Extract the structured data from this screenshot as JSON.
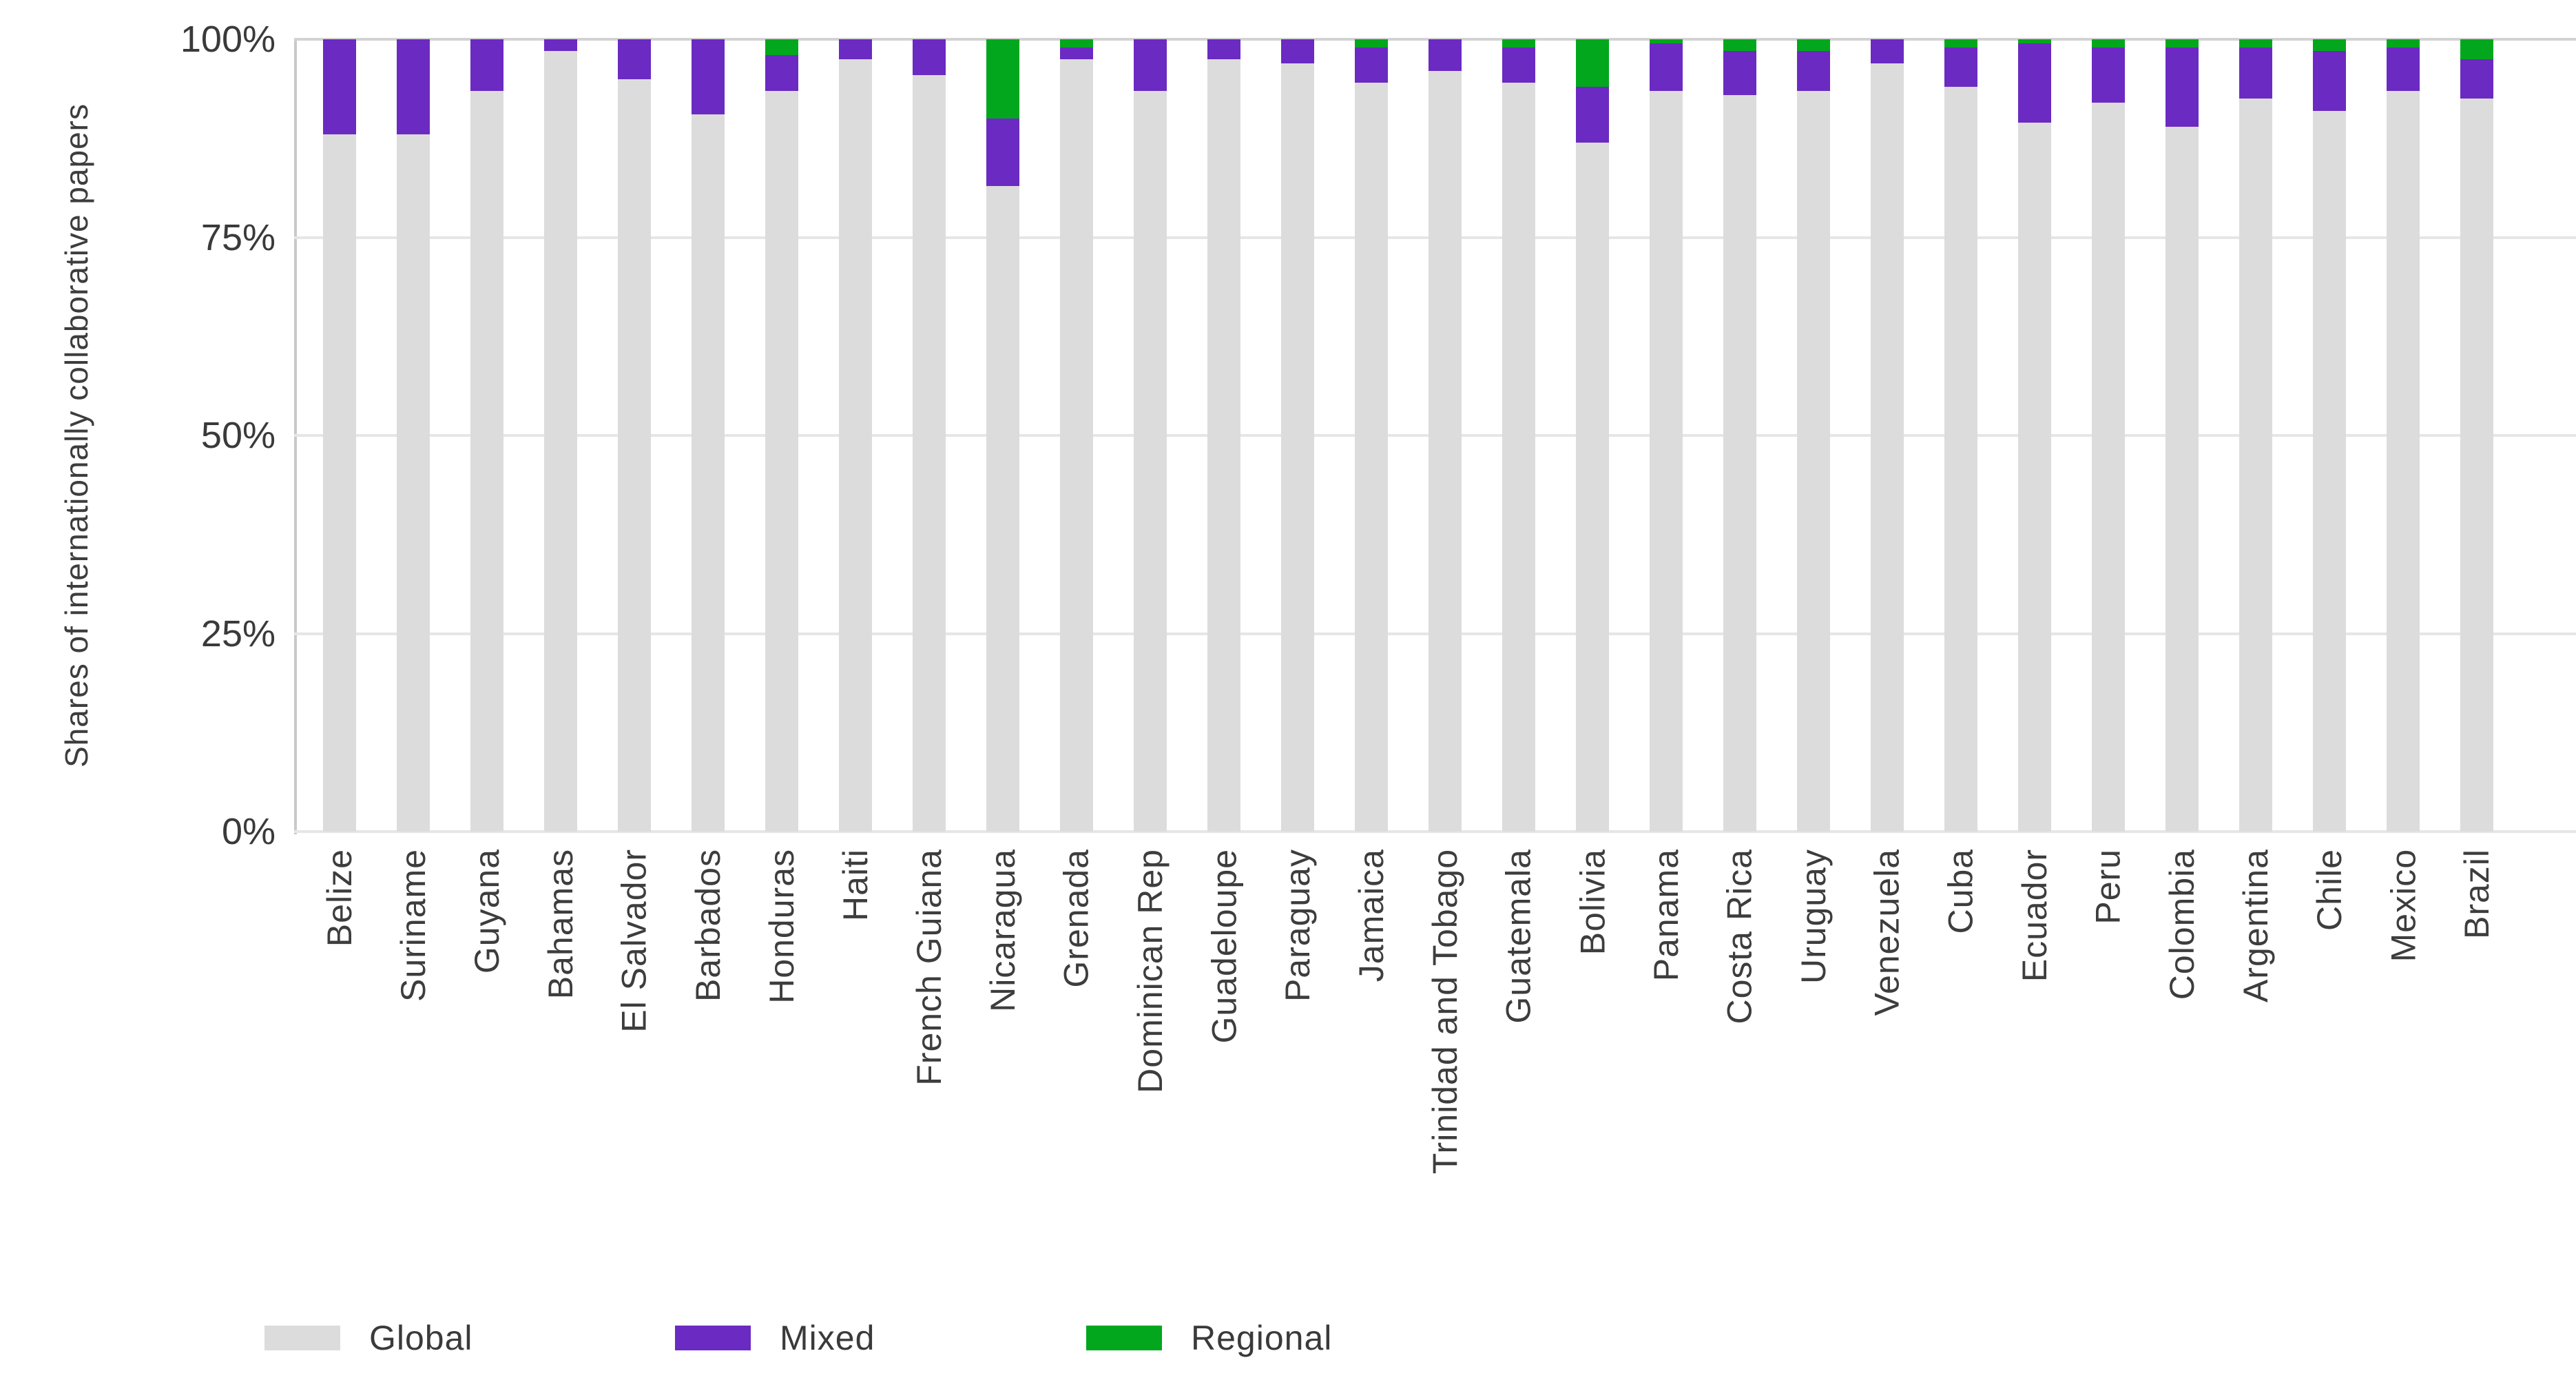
{
  "chart_data": {
    "type": "bar",
    "stacked": true,
    "orientation": "vertical",
    "title": "",
    "ylabel": "Shares of internationally collaborative papers",
    "xlabel": "",
    "ylim": [
      0,
      100
    ],
    "yticks": [
      "100%",
      "75%",
      "50%",
      "25%",
      "0%"
    ],
    "ytick_values": [
      100,
      75,
      50,
      25,
      0
    ],
    "grid": "horizontal",
    "legend_position": "bottom",
    "categories": [
      "Belize",
      "Suriname",
      "Guyana",
      "Bahamas",
      "El Salvador",
      "Barbados",
      "Honduras",
      "Haiti",
      "French Guiana",
      "Nicaragua",
      "Grenada",
      "Dominican Rep",
      "Guadeloupe",
      "Paraguay",
      "Jamaica",
      "Trinidad and Tobago",
      "Guatemala",
      "Bolivia",
      "Panama",
      "Costa Rica",
      "Uruguay",
      "Venezuela",
      "Cuba",
      "Ecuador",
      "Peru",
      "Colombia",
      "Argentina",
      "Chile",
      "Mexico",
      "Brazil"
    ],
    "series": [
      {
        "name": "Global",
        "color": "#dcdcdc",
        "values": [
          88,
          88,
          93.5,
          98.5,
          95,
          90.5,
          93.5,
          97.5,
          95.5,
          81.5,
          97.5,
          93.5,
          97.5,
          97,
          94.5,
          96,
          94.5,
          87,
          93.5,
          93,
          93.5,
          97,
          94,
          89.5,
          92,
          89,
          92.5,
          91,
          93.5,
          92.5
        ]
      },
      {
        "name": "Mixed",
        "color": "#6b2ac1",
        "values": [
          12,
          12,
          6.5,
          1.5,
          5,
          9.5,
          4.5,
          2.5,
          4.5,
          8.5,
          1.5,
          6.5,
          2.5,
          3,
          4.5,
          4,
          4.5,
          7,
          6,
          5.5,
          5,
          3,
          5,
          10,
          7,
          10,
          6.5,
          7.5,
          5.5,
          5
        ]
      },
      {
        "name": "Regional",
        "color": "#02a71d",
        "values": [
          0,
          0,
          0,
          0,
          0,
          0,
          2,
          0,
          0,
          10,
          1,
          0,
          0,
          0,
          1,
          0,
          1,
          6,
          0.5,
          1.5,
          1.5,
          0,
          1,
          0.5,
          1,
          1,
          1,
          1.5,
          1,
          2.5
        ]
      }
    ],
    "colors": {
      "global_gray": "#dcdcdc",
      "mixed_purple": "#6b2ac1",
      "regional_green": "#02a71d",
      "gridline": "#e6e6e6",
      "axis_line": "#c9c9c9",
      "text": "#3d3d3d"
    }
  },
  "layout_note": "stacked 100% bar chart, gray base, purple middle, green top"
}
